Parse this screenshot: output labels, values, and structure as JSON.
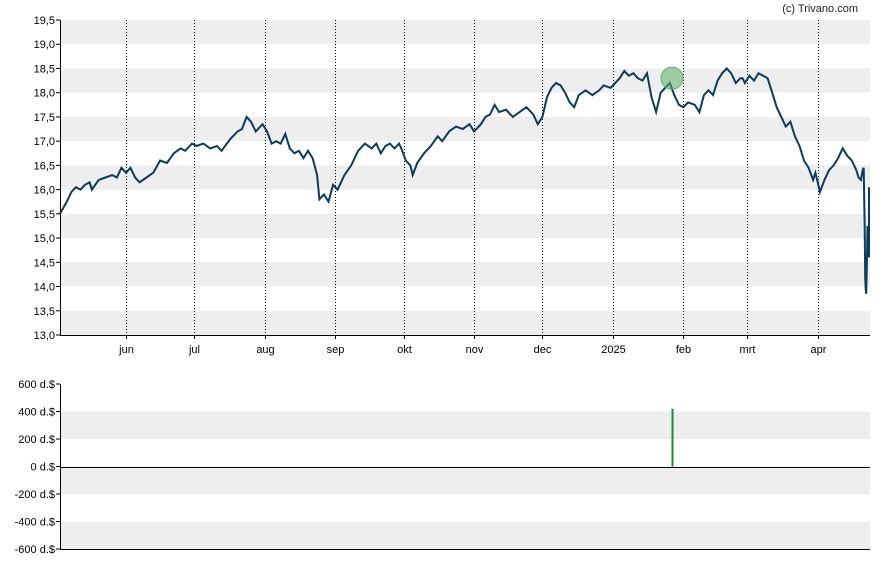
{
  "credit": "(c) Trivano.com",
  "colors": {
    "price_line": "#0d3b5c",
    "band": "#eeeeee",
    "marker_fill": "#5fae6e",
    "volume_bar": "#1a8a2a",
    "axis": "#000000",
    "grid": "#000000"
  },
  "chart_data": [
    {
      "type": "line",
      "name": "price",
      "ylim": [
        13.0,
        19.5
      ],
      "yticks": [
        "13,0",
        "13,5",
        "14,0",
        "14,5",
        "15,0",
        "15,5",
        "16,0",
        "16,5",
        "17,0",
        "17,5",
        "18,0",
        "18,5",
        "19,0",
        "19,5"
      ],
      "xticks": [
        "jun",
        "jul",
        "aug",
        "sep",
        "okt",
        "nov",
        "dec",
        "2025",
        "feb",
        "mrt",
        "apr"
      ],
      "x_start": "2024-05-03",
      "x_end": "2025-04-24",
      "xtick_dates": [
        "2024-06-01",
        "2024-07-01",
        "2024-08-01",
        "2024-09-01",
        "2024-10-01",
        "2024-11-01",
        "2024-12-01",
        "2025-01-01",
        "2025-02-01",
        "2025-03-01",
        "2025-04-01"
      ],
      "grid": "vertical dotted at month ticks, horizontal shaded bands",
      "highlight": {
        "date": "2025-01-27",
        "value": 18.3
      },
      "series": [
        {
          "points": [
            [
              "2024-05-03",
              15.5
            ],
            [
              "2024-05-06",
              15.75
            ],
            [
              "2024-05-08",
              15.95
            ],
            [
              "2024-05-10",
              16.05
            ],
            [
              "2024-05-12",
              16.0
            ],
            [
              "2024-05-14",
              16.1
            ],
            [
              "2024-05-16",
              16.15
            ],
            [
              "2024-05-17",
              16.0
            ],
            [
              "2024-05-20",
              16.2
            ],
            [
              "2024-05-23",
              16.25
            ],
            [
              "2024-05-26",
              16.3
            ],
            [
              "2024-05-28",
              16.25
            ],
            [
              "2024-05-30",
              16.45
            ],
            [
              "2024-06-01",
              16.35
            ],
            [
              "2024-06-03",
              16.45
            ],
            [
              "2024-06-05",
              16.25
            ],
            [
              "2024-06-07",
              16.15
            ],
            [
              "2024-06-10",
              16.25
            ],
            [
              "2024-06-13",
              16.35
            ],
            [
              "2024-06-16",
              16.6
            ],
            [
              "2024-06-19",
              16.55
            ],
            [
              "2024-06-22",
              16.75
            ],
            [
              "2024-06-25",
              16.85
            ],
            [
              "2024-06-27",
              16.8
            ],
            [
              "2024-06-30",
              16.95
            ],
            [
              "2024-07-02",
              16.9
            ],
            [
              "2024-07-05",
              16.95
            ],
            [
              "2024-07-08",
              16.85
            ],
            [
              "2024-07-11",
              16.9
            ],
            [
              "2024-07-13",
              16.8
            ],
            [
              "2024-07-17",
              17.05
            ],
            [
              "2024-07-20",
              17.2
            ],
            [
              "2024-07-22",
              17.25
            ],
            [
              "2024-07-24",
              17.5
            ],
            [
              "2024-07-26",
              17.4
            ],
            [
              "2024-07-28",
              17.2
            ],
            [
              "2024-07-31",
              17.35
            ],
            [
              "2024-08-02",
              17.2
            ],
            [
              "2024-08-04",
              16.95
            ],
            [
              "2024-08-06",
              17.0
            ],
            [
              "2024-08-08",
              16.95
            ],
            [
              "2024-08-10",
              17.15
            ],
            [
              "2024-08-12",
              16.85
            ],
            [
              "2024-08-14",
              16.75
            ],
            [
              "2024-08-16",
              16.8
            ],
            [
              "2024-08-18",
              16.65
            ],
            [
              "2024-08-20",
              16.8
            ],
            [
              "2024-08-22",
              16.65
            ],
            [
              "2024-08-24",
              16.3
            ],
            [
              "2024-08-25",
              15.8
            ],
            [
              "2024-08-27",
              15.9
            ],
            [
              "2024-08-29",
              15.75
            ],
            [
              "2024-08-31",
              16.1
            ],
            [
              "2024-09-02",
              16.0
            ],
            [
              "2024-09-05",
              16.3
            ],
            [
              "2024-09-08",
              16.5
            ],
            [
              "2024-09-11",
              16.8
            ],
            [
              "2024-09-14",
              16.95
            ],
            [
              "2024-09-17",
              16.85
            ],
            [
              "2024-09-19",
              16.95
            ],
            [
              "2024-09-21",
              16.75
            ],
            [
              "2024-09-23",
              16.9
            ],
            [
              "2024-09-25",
              16.95
            ],
            [
              "2024-09-27",
              16.85
            ],
            [
              "2024-09-29",
              16.95
            ],
            [
              "2024-09-30",
              16.85
            ],
            [
              "2024-10-02",
              16.6
            ],
            [
              "2024-10-04",
              16.5
            ],
            [
              "2024-10-05",
              16.3
            ],
            [
              "2024-10-07",
              16.55
            ],
            [
              "2024-10-10",
              16.75
            ],
            [
              "2024-10-13",
              16.9
            ],
            [
              "2024-10-16",
              17.1
            ],
            [
              "2024-10-18",
              17.0
            ],
            [
              "2024-10-21",
              17.2
            ],
            [
              "2024-10-24",
              17.3
            ],
            [
              "2024-10-27",
              17.25
            ],
            [
              "2024-10-30",
              17.35
            ],
            [
              "2024-11-01",
              17.2
            ],
            [
              "2024-11-04",
              17.35
            ],
            [
              "2024-11-06",
              17.5
            ],
            [
              "2024-11-08",
              17.55
            ],
            [
              "2024-11-10",
              17.75
            ],
            [
              "2024-11-12",
              17.6
            ],
            [
              "2024-11-15",
              17.65
            ],
            [
              "2024-11-18",
              17.5
            ],
            [
              "2024-11-21",
              17.6
            ],
            [
              "2024-11-24",
              17.7
            ],
            [
              "2024-11-27",
              17.55
            ],
            [
              "2024-11-29",
              17.35
            ],
            [
              "2024-12-01",
              17.5
            ],
            [
              "2024-12-03",
              17.9
            ],
            [
              "2024-12-05",
              18.1
            ],
            [
              "2024-12-07",
              18.2
            ],
            [
              "2024-12-09",
              18.15
            ],
            [
              "2024-12-11",
              18.0
            ],
            [
              "2024-12-13",
              17.8
            ],
            [
              "2024-12-15",
              17.7
            ],
            [
              "2024-12-17",
              17.95
            ],
            [
              "2024-12-20",
              18.05
            ],
            [
              "2024-12-23",
              17.95
            ],
            [
              "2024-12-26",
              18.05
            ],
            [
              "2024-12-28",
              18.15
            ],
            [
              "2024-12-31",
              18.1
            ],
            [
              "2025-01-02",
              18.2
            ],
            [
              "2025-01-04",
              18.3
            ],
            [
              "2025-01-06",
              18.45
            ],
            [
              "2025-01-08",
              18.35
            ],
            [
              "2025-01-10",
              18.4
            ],
            [
              "2025-01-12",
              18.3
            ],
            [
              "2025-01-14",
              18.25
            ],
            [
              "2025-01-16",
              18.4
            ],
            [
              "2025-01-18",
              17.9
            ],
            [
              "2025-01-20",
              17.6
            ],
            [
              "2025-01-22",
              18.0
            ],
            [
              "2025-01-24",
              18.1
            ],
            [
              "2025-01-26",
              18.2
            ],
            [
              "2025-01-28",
              17.95
            ],
            [
              "2025-01-30",
              17.75
            ],
            [
              "2025-02-01",
              17.7
            ],
            [
              "2025-02-03",
              17.8
            ],
            [
              "2025-02-06",
              17.75
            ],
            [
              "2025-02-08",
              17.6
            ],
            [
              "2025-02-10",
              17.95
            ],
            [
              "2025-02-12",
              18.05
            ],
            [
              "2025-02-14",
              17.95
            ],
            [
              "2025-02-16",
              18.25
            ],
            [
              "2025-02-18",
              18.4
            ],
            [
              "2025-02-20",
              18.5
            ],
            [
              "2025-02-22",
              18.4
            ],
            [
              "2025-02-24",
              18.2
            ],
            [
              "2025-02-26",
              18.3
            ],
            [
              "2025-02-27",
              18.3
            ],
            [
              "2025-02-28",
              18.2
            ],
            [
              "2025-03-02",
              18.35
            ],
            [
              "2025-03-04",
              18.25
            ],
            [
              "2025-03-06",
              18.4
            ],
            [
              "2025-03-08",
              18.35
            ],
            [
              "2025-03-10",
              18.3
            ],
            [
              "2025-03-12",
              18.0
            ],
            [
              "2025-03-14",
              17.7
            ],
            [
              "2025-03-16",
              17.5
            ],
            [
              "2025-03-18",
              17.3
            ],
            [
              "2025-03-20",
              17.4
            ],
            [
              "2025-03-22",
              17.1
            ],
            [
              "2025-03-24",
              16.9
            ],
            [
              "2025-03-26",
              16.6
            ],
            [
              "2025-03-28",
              16.45
            ],
            [
              "2025-03-30",
              16.2
            ],
            [
              "2025-03-31",
              16.35
            ],
            [
              "2025-04-01",
              16.15
            ],
            [
              "2025-04-02",
              15.95
            ],
            [
              "2025-04-04",
              16.2
            ],
            [
              "2025-04-06",
              16.4
            ],
            [
              "2025-04-08",
              16.5
            ],
            [
              "2025-04-10",
              16.65
            ],
            [
              "2025-04-12",
              16.85
            ],
            [
              "2025-04-14",
              16.7
            ],
            [
              "2025-04-16",
              16.6
            ],
            [
              "2025-04-18",
              16.4
            ],
            [
              "2025-04-19",
              16.25
            ],
            [
              "2025-04-20",
              16.2
            ],
            [
              "2025-04-21",
              16.4
            ],
            [
              "2025-04-21",
              16.45
            ],
            [
              "2025-04-22",
              15.2
            ],
            [
              "2025-04-22",
              14.2
            ],
            [
              "2025-04-22",
              13.95
            ],
            [
              "2025-04-22",
              13.85
            ],
            [
              "2025-04-23",
              14.6
            ],
            [
              "2025-04-23",
              15.25
            ],
            [
              "2025-04-23",
              14.85
            ],
            [
              "2025-04-23",
              15.2
            ],
            [
              "2025-04-24",
              15.15
            ],
            [
              "2025-04-24",
              14.6
            ],
            [
              "2025-04-24",
              15.2
            ],
            [
              "2025-04-24",
              15.8
            ],
            [
              "2025-04-24",
              16.05
            ]
          ]
        }
      ]
    },
    {
      "type": "bar",
      "name": "volume",
      "ylim": [
        -600,
        600
      ],
      "yticks": [
        "-600 d.$",
        "-400 d.$",
        "-200 d.$",
        "0 d.$",
        "200 d.$",
        "400 d.$",
        "600 d.$"
      ],
      "bars": [
        {
          "date": "2025-01-27",
          "value": 420
        }
      ]
    }
  ]
}
